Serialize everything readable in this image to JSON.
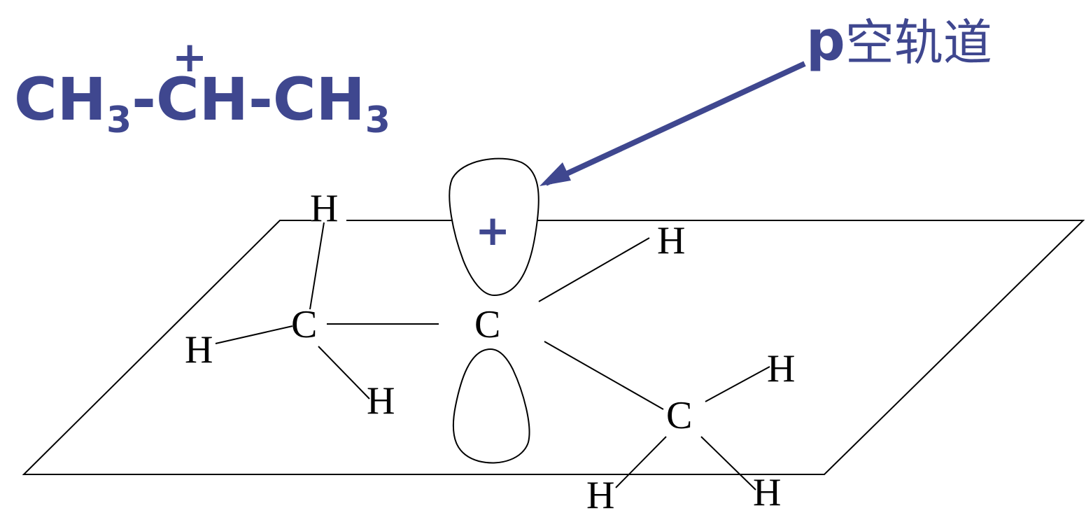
{
  "colors": {
    "accent": "#3f478f",
    "ink": "#000000",
    "background": "#ffffff"
  },
  "formula": {
    "part1": "CH",
    "sub1": "3",
    "part2": "-CH-CH",
    "sub2": "3",
    "charge": "+"
  },
  "orbital_label": {
    "letter": "p",
    "text": "空轨道"
  },
  "molecule": {
    "orbital_charge": "+",
    "atoms": {
      "carbon_center": "C",
      "carbon_left": "C",
      "carbon_right": "C",
      "h_center_top": "H",
      "h_left_top": "H",
      "h_left_side": "H",
      "h_left_bottom": "H",
      "h_right_top": "H",
      "h_right_bottom_left": "H",
      "h_right_bottom_right": "H"
    }
  }
}
